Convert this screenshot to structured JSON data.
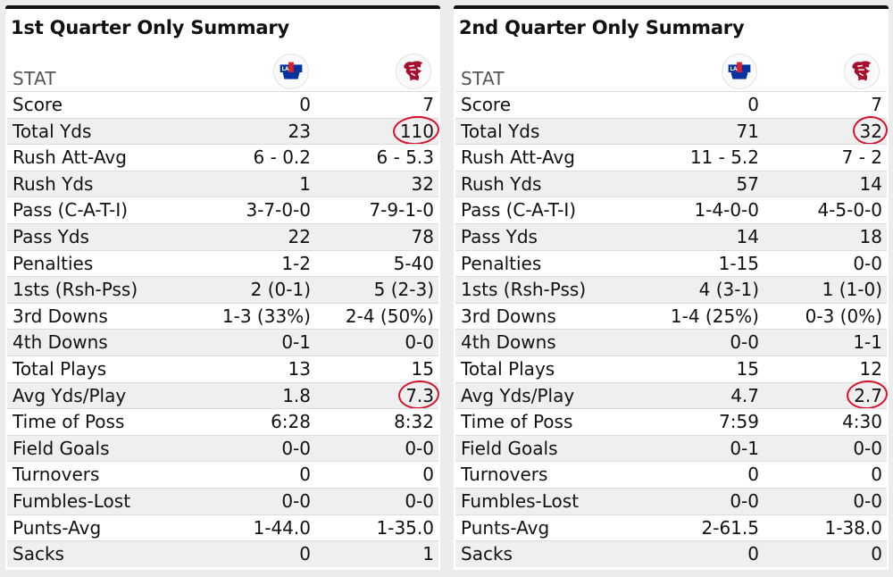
{
  "panels": [
    {
      "title": "1st Quarter Only Summary",
      "stat_header": "STAT",
      "teams": {
        "left_logo": "la-tech-logo",
        "right_logo": "wsu-cougar-logo"
      },
      "rows": [
        {
          "stat": "Score",
          "team1": "0",
          "team2": "7"
        },
        {
          "stat": "Total Yds",
          "team1": "23",
          "team2": "110"
        },
        {
          "stat": "Rush Att-Avg",
          "team1": "6 - 0.2",
          "team2": "6 - 5.3"
        },
        {
          "stat": "Rush Yds",
          "team1": "1",
          "team2": "32"
        },
        {
          "stat": "Pass (C-A-T-I)",
          "team1": "3-7-0-0",
          "team2": "7-9-1-0"
        },
        {
          "stat": "Pass Yds",
          "team1": "22",
          "team2": "78"
        },
        {
          "stat": "Penalties",
          "team1": "1-2",
          "team2": "5-40"
        },
        {
          "stat": "1sts (Rsh-Pss)",
          "team1": "2 (0-1)",
          "team2": "5 (2-3)"
        },
        {
          "stat": "3rd Downs",
          "team1": "1-3 (33%)",
          "team2": "2-4 (50%)"
        },
        {
          "stat": "4th Downs",
          "team1": "0-1",
          "team2": "0-0"
        },
        {
          "stat": "Total Plays",
          "team1": "13",
          "team2": "15"
        },
        {
          "stat": "Avg Yds/Play",
          "team1": "1.8",
          "team2": "7.3"
        },
        {
          "stat": "Time of Poss",
          "team1": "6:28",
          "team2": "8:32"
        },
        {
          "stat": "Field Goals",
          "team1": "0-0",
          "team2": "0-0"
        },
        {
          "stat": "Turnovers",
          "team1": "0",
          "team2": "0"
        },
        {
          "stat": "Fumbles-Lost",
          "team1": "0-0",
          "team2": "0-0"
        },
        {
          "stat": "Punts-Avg",
          "team1": "1-44.0",
          "team2": "1-35.0"
        },
        {
          "stat": "Sacks",
          "team1": "0",
          "team2": "1"
        }
      ]
    },
    {
      "title": "2nd Quarter Only Summary",
      "stat_header": "STAT",
      "teams": {
        "left_logo": "la-tech-logo",
        "right_logo": "wsu-cougar-logo"
      },
      "rows": [
        {
          "stat": "Score",
          "team1": "0",
          "team2": "7"
        },
        {
          "stat": "Total Yds",
          "team1": "71",
          "team2": "32"
        },
        {
          "stat": "Rush Att-Avg",
          "team1": "11 - 5.2",
          "team2": "7 - 2"
        },
        {
          "stat": "Rush Yds",
          "team1": "57",
          "team2": "14"
        },
        {
          "stat": "Pass (C-A-T-I)",
          "team1": "1-4-0-0",
          "team2": "4-5-0-0"
        },
        {
          "stat": "Pass Yds",
          "team1": "14",
          "team2": "18"
        },
        {
          "stat": "Penalties",
          "team1": "1-15",
          "team2": "0-0"
        },
        {
          "stat": "1sts (Rsh-Pss)",
          "team1": "4 (3-1)",
          "team2": "1 (1-0)"
        },
        {
          "stat": "3rd Downs",
          "team1": "1-4 (25%)",
          "team2": "0-3 (0%)"
        },
        {
          "stat": "4th Downs",
          "team1": "0-0",
          "team2": "1-1"
        },
        {
          "stat": "Total Plays",
          "team1": "15",
          "team2": "12"
        },
        {
          "stat": "Avg Yds/Play",
          "team1": "4.7",
          "team2": "2.7"
        },
        {
          "stat": "Time of Poss",
          "team1": "7:59",
          "team2": "4:30"
        },
        {
          "stat": "Field Goals",
          "team1": "0-1",
          "team2": "0-0"
        },
        {
          "stat": "Turnovers",
          "team1": "0",
          "team2": "0"
        },
        {
          "stat": "Fumbles-Lost",
          "team1": "0-0",
          "team2": "0-0"
        },
        {
          "stat": "Punts-Avg",
          "team1": "2-61.5",
          "team2": "1-38.0"
        },
        {
          "stat": "Sacks",
          "team1": "0",
          "team2": "0"
        }
      ]
    }
  ],
  "annotations": {
    "color": "#d8122a",
    "circled": [
      {
        "panel": 0,
        "stat": "Total Yds",
        "column": "team2"
      },
      {
        "panel": 0,
        "stat": "Avg Yds/Play",
        "column": "team2"
      },
      {
        "panel": 1,
        "stat": "Total Yds",
        "column": "team2"
      },
      {
        "panel": 1,
        "stat": "Avg Yds/Play",
        "column": "team2"
      }
    ]
  },
  "colors": {
    "latech_blue": "#0033a0",
    "latech_red": "#e31b23",
    "wsu_crimson": "#a60f2d"
  }
}
